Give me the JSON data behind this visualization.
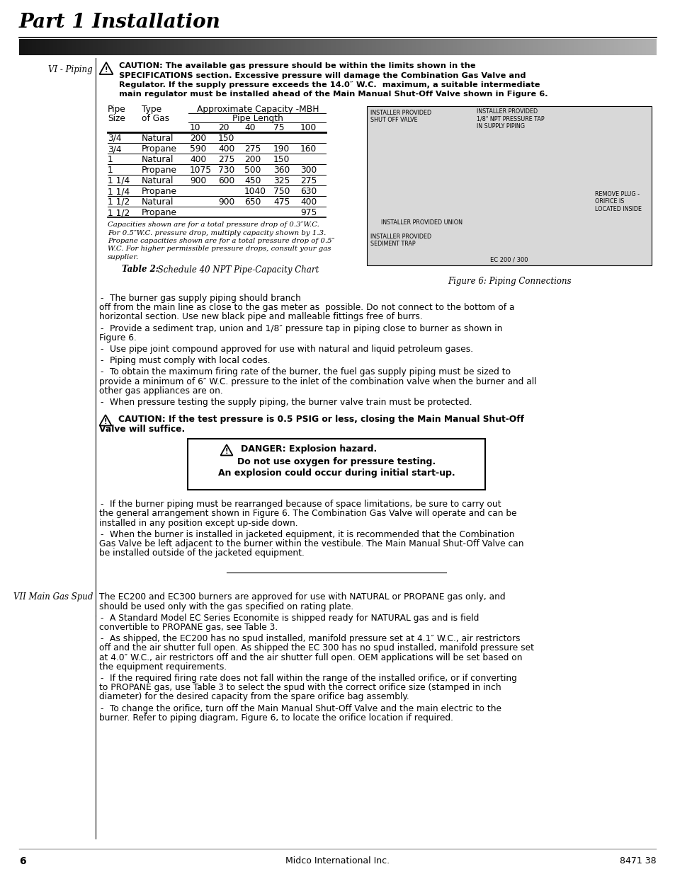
{
  "title": "Part 1 Installation",
  "section_label_vi": "VI - Piping",
  "section_label_vii": "VII Main Gas Spud",
  "caution_text_1_bold": "CAUTION: The available gas pressure should be within the limits shown in the\nSPECIFICATIONS section. Excessive pressure will damage the Combination Gas Valve and\nRegulator. If the supply pressure exceeds the 14.0″ W.C.  maximum, a suitable intermediate\nmain regulator must be installed ahead of the Main Manual Shut-Off Valve shown in Figure 6.",
  "table_data": [
    [
      "3/4",
      "Natural",
      "200",
      "150",
      "",
      "",
      ""
    ],
    [
      "3/4",
      "Propane",
      "590",
      "400",
      "275",
      "190",
      "160"
    ],
    [
      "1",
      "Natural",
      "400",
      "275",
      "200",
      "150",
      ""
    ],
    [
      "1",
      "Propane",
      "1075",
      "730",
      "500",
      "360",
      "300"
    ],
    [
      "1 1/4",
      "Natural",
      "900",
      "600",
      "450",
      "325",
      "275"
    ],
    [
      "1 1/4",
      "Propane",
      "",
      "",
      "1040",
      "750",
      "630"
    ],
    [
      "1 1/2",
      "Natural",
      "",
      "900",
      "650",
      "475",
      "400"
    ],
    [
      "1 1/2",
      "Propane",
      "",
      "",
      "",
      "",
      "975"
    ]
  ],
  "table_note": "Capacities shown are for a total pressure drop of 0.3″W.C.\nFor 0.5″W.C. pressure drop, multiply capacity shown by 1.3.\nPropane capacities shown are for a total pressure drop of 0.5″\nW.C. For higher permissible pressure drops, consult your gas\nsupplier.",
  "table_caption_bold": "Table 2:",
  "table_caption_italic": " Schedule 40 NPT Pipe-Capacity Chart",
  "figure_caption": "Figure 6: Piping Connections",
  "bullet_points_vi": [
    "-\tThe burner gas supply piping should branch\noff from the main line as close to the gas meter as  possible. Do not connect to the bottom of a\nhorizontal section. Use new black pipe and malleable fittings free of burrs.",
    "-\tProvide a sediment trap, union and 1/8″ pressure tap in piping close to burner as shown in\nFigure 6.",
    "-\tUse pipe joint compound approved for use with natural and liquid petroleum gases.",
    "-\tPiping must comply with local codes.",
    "-\tTo obtain the maximum firing rate of the burner, the fuel gas supply piping must be sized to\nprovide a minimum of 6″ W.C. pressure to the inlet of the combination valve when the burner and all\nother gas appliances are on.",
    "-\tWhen pressure testing the supply piping, the burner valve train must be protected."
  ],
  "caution_text_2": "CAUTION: If the test pressure is 0.5 PSIG or less, closing the Main Manual Shut-Off\nValve will suffice.",
  "danger_line1": "⚠  DANGER: Explosion hazard.",
  "danger_line2": "Do not use oxygen for pressure testing.",
  "danger_line3": "An explosion could occur during initial start-up.",
  "bullet_points_vi2": [
    "-\tIf the burner piping must be rearranged because of space limitations, be sure to carry out\nthe general arrangement shown in Figure 6. The Combination Gas Valve will operate and can be\ninstalled in any position except up-side down.",
    "-\tWhen the burner is installed in jacketed equipment, it is recommended that the Combination\nGas Valve be left adjacent to the burner within the vestibule. The Main Manual Shut-Off Valve can\nbe installed outside of the jacketed equipment."
  ],
  "vii_text_1": "The EC200 and EC300 burners are approved for use with NATURAL or PROPANE gas only, and\nshould be used only with the gas specified on rating plate.",
  "vii_bullets": [
    "-\tA Standard Model EC Series Economite is shipped ready for NATURAL gas and is field\nconvertible to PROPANE gas, see Table 3.",
    "-\tAs shipped, the EC200 has no spud installed, manifold pressure set at 4.1″ W.C., air restrictors\noff and the air shutter full open. As shipped the EC 300 has no spud installed, manifold pressure set\nat 4.0″ W.C., air restrictors off and the air shutter full open. OEM applications will be set based on\nthe equipment requirements.",
    "-\tIf the required firing rate does not fall within the range of the installed orifice, or if converting\nto PROPANE gas, use Table 3 to select the spud with the correct orifice size (stamped in inch\ndiameter) for the desired capacity from the spare orifice bag assembly.",
    "-\tTo change the orifice, turn off the Main Manual Shut-Off Valve and the main electric to the\nburner. Refer to piping diagram, Figure 6, to locate the orifice location if required."
  ],
  "page_number": "6",
  "company": "Midco International Inc.",
  "doc_ref": "8471 38"
}
